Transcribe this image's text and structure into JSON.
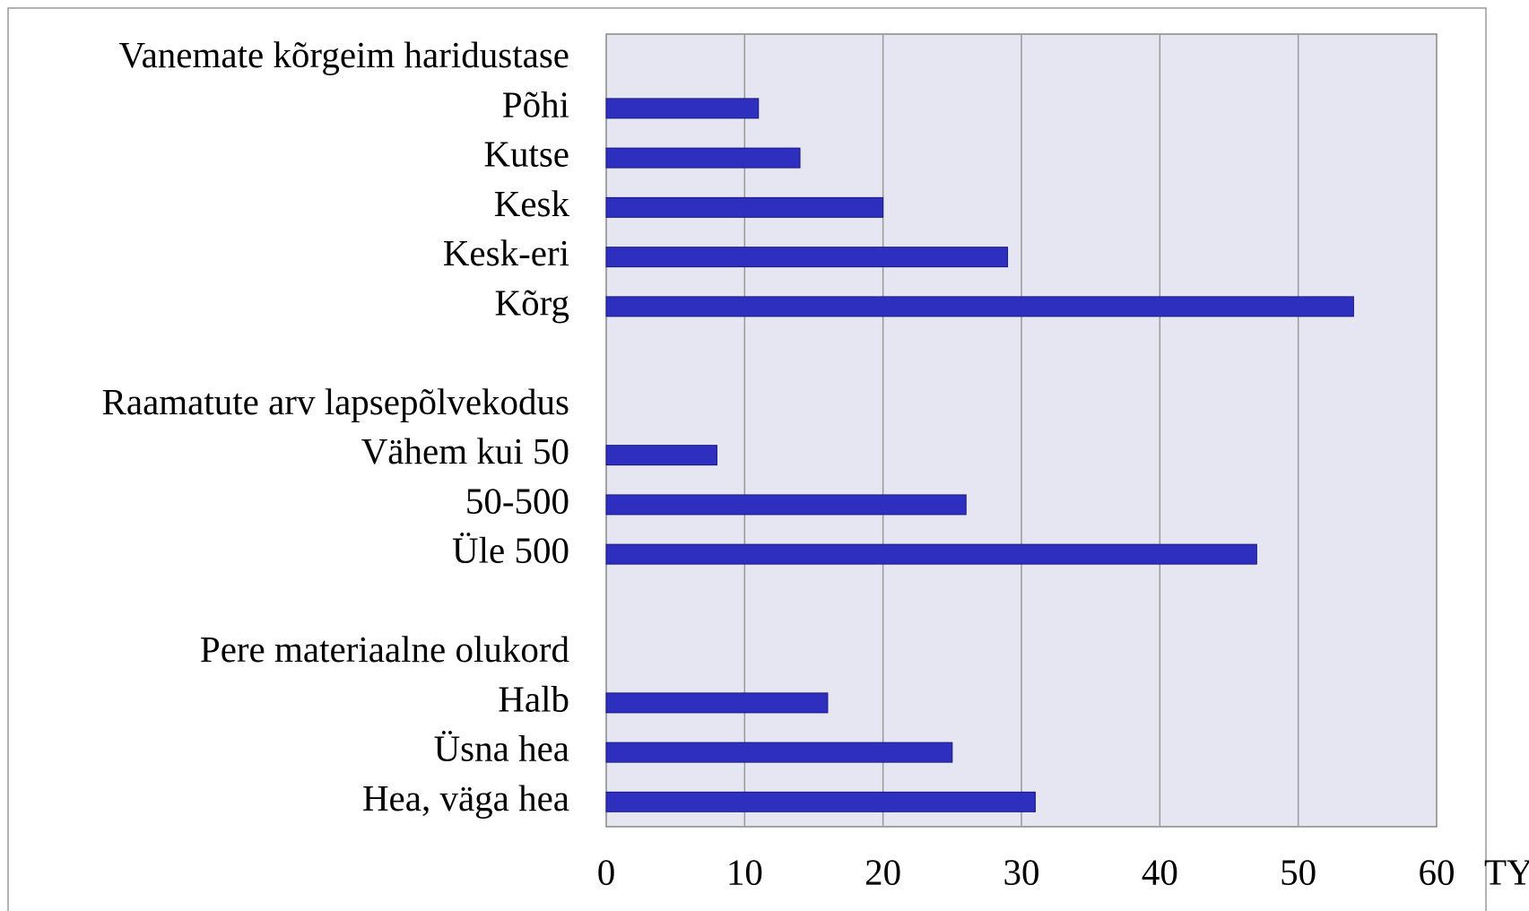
{
  "chart_data": {
    "type": "bar",
    "orientation": "horizontal",
    "categories": [
      "Vanemate kõrgeim haridustase",
      "Põhi",
      "Kutse",
      "Kesk",
      "Kesk-eri",
      "Kõrg",
      null,
      "Raamatute arv lapsepõlvekodus",
      "Vähem kui 50",
      "50-500",
      "Üle 500",
      null,
      "Pere materiaalne olukord",
      "Halb",
      "Üsna hea",
      "Hea, väga hea"
    ],
    "values": [
      null,
      11,
      14,
      20,
      29,
      54,
      null,
      null,
      8,
      26,
      47,
      null,
      null,
      16,
      25,
      31
    ],
    "color": "#2f2fbf",
    "xlim": [
      0,
      60
    ],
    "xticks": [
      0,
      10,
      20,
      30,
      40,
      50,
      60
    ],
    "grid": true,
    "annotations": [
      "TY"
    ]
  }
}
